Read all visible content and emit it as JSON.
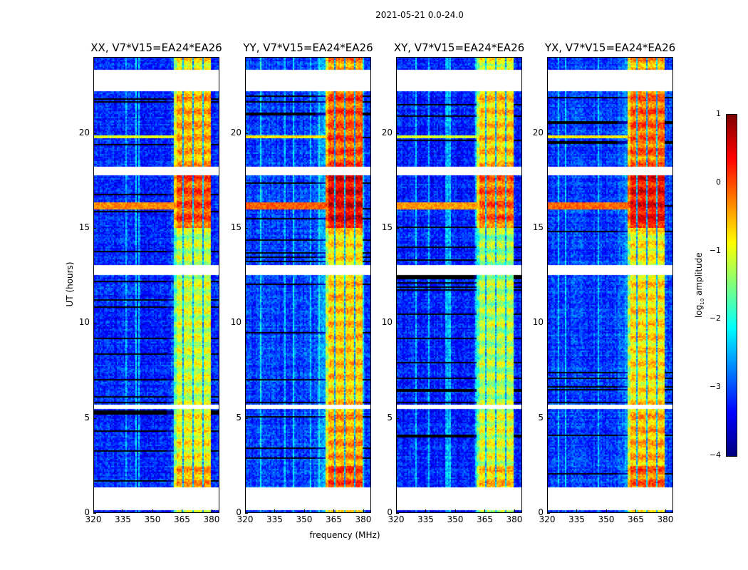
{
  "chart_data": {
    "type": "heatmap",
    "title": "2021-05-21 0.0-24.0",
    "xlabel": "frequency (MHz)",
    "ylabel": "UT (hours)",
    "xlim": [
      320,
      384
    ],
    "ylim": [
      0,
      24
    ],
    "xticks": [
      "320",
      "335",
      "350",
      "365",
      "380"
    ],
    "xtick_values": [
      320,
      335,
      350,
      365,
      380
    ],
    "yticks": [
      "0",
      "5",
      "10",
      "15",
      "20"
    ],
    "ytick_values": [
      0,
      5,
      10,
      15,
      20
    ],
    "colormap": "jet",
    "colorbar": {
      "label_prefix": "log",
      "label_sub": "10",
      "label_suffix": " amplitude",
      "range": [
        -4,
        1
      ],
      "ticks": [
        "1",
        "0",
        "−1",
        "−2",
        "−3",
        "−4"
      ],
      "tick_values": [
        1,
        0,
        -1,
        -2,
        -3,
        -4
      ]
    },
    "panels": [
      {
        "title": "XX, V7*V15=EA24*EA26",
        "gain": 0.0
      },
      {
        "title": "YY, V7*V15=EA24*EA26",
        "gain": 0.45
      },
      {
        "title": "XY, V7*V15=EA24*EA26",
        "gain": -0.15
      },
      {
        "title": "YX, V7*V15=EA24*EA26",
        "gain": 0.35
      }
    ],
    "background_level": -3.2,
    "rfi_band_mhz": [
      360.5,
      380
    ],
    "rfi_subband_gaps_mhz": [
      365.5,
      370.5,
      375.5
    ],
    "flagged_hours": [
      [
        0.15,
        1.35
      ],
      [
        5.45,
        5.7
      ],
      [
        12.5,
        13.05
      ],
      [
        17.75,
        18.25
      ],
      [
        22.2,
        23.3
      ]
    ],
    "rfi_levels": [
      {
        "hours": [
          0,
          0.15
        ],
        "level": -1.3
      },
      {
        "hours": [
          1.35,
          2.5
        ],
        "level": -0.5
      },
      {
        "hours": [
          2.5,
          5.45
        ],
        "level": -0.9
      },
      {
        "hours": [
          5.7,
          12.5
        ],
        "level": -1.1
      },
      {
        "hours": [
          13.05,
          15.0
        ],
        "level": -1.2
      },
      {
        "hours": [
          15.0,
          17.75
        ],
        "level": 0.0
      },
      {
        "hours": [
          18.25,
          22.2
        ],
        "level": -0.5
      },
      {
        "hours": [
          23.3,
          24
        ],
        "level": -0.8
      }
    ],
    "broadband_lines": [
      {
        "hours": [
          16.0,
          16.35
        ],
        "level": -0.3
      },
      {
        "hours": [
          19.75,
          19.9
        ],
        "level": -1.0
      }
    ]
  }
}
